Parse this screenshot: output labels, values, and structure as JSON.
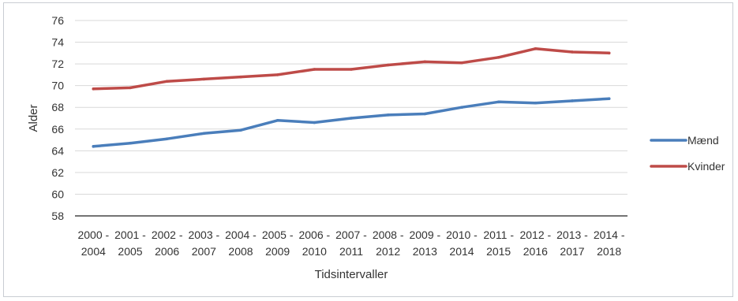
{
  "chart_data": {
    "type": "line",
    "xlabel": "Tidsintervaller",
    "ylabel": "Alder",
    "ylim": [
      58,
      76
    ],
    "yticks": [
      58,
      60,
      62,
      64,
      66,
      68,
      70,
      72,
      74,
      76
    ],
    "grid": true,
    "legend_position": "right",
    "categories": [
      "2000 - 2004",
      "2001 - 2005",
      "2002 - 2006",
      "2003 - 2007",
      "2004 - 2008",
      "2005 - 2009",
      "2006 - 2010",
      "2007 - 2011",
      "2008 - 2012",
      "2009 - 2013",
      "2010 - 2014",
      "2011 - 2015",
      "2012 - 2016",
      "2013 - 2017",
      "2014 - 2018"
    ],
    "series": [
      {
        "name": "Mænd",
        "color": "#4a7ebb",
        "values": [
          64.4,
          64.7,
          65.1,
          65.6,
          65.9,
          66.8,
          66.6,
          67.0,
          67.3,
          67.4,
          68.0,
          68.5,
          68.4,
          68.6,
          68.8
        ]
      },
      {
        "name": "Kvinder",
        "color": "#be4b48",
        "values": [
          69.7,
          69.8,
          70.4,
          70.6,
          70.8,
          71.0,
          71.5,
          71.5,
          71.9,
          72.2,
          72.1,
          72.6,
          73.4,
          73.1,
          73.0
        ]
      }
    ]
  }
}
